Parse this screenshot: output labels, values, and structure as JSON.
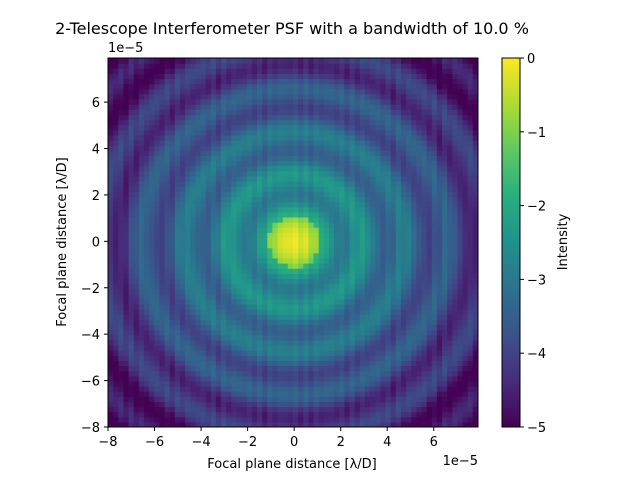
{
  "chart_data": {
    "type": "heatmap",
    "title": "2-Telescope Interferometer PSF  with a bandwidth of 10.0 %",
    "xlabel": "Focal plane distance [λ/D]",
    "ylabel": "Focal plane distance [λ/D]",
    "x_offset_text": "1e−5",
    "y_offset_text": "1e−5",
    "xlim": [
      -8,
      7.9
    ],
    "ylim": [
      -8,
      7.9
    ],
    "x_ticks": [
      -8,
      -6,
      -4,
      -2,
      0,
      2,
      4,
      6
    ],
    "y_ticks": [
      -8,
      -6,
      -4,
      -2,
      0,
      2,
      4,
      6
    ],
    "x_tick_labels": [
      "−8",
      "−6",
      "−4",
      "−2",
      "0",
      "2",
      "4",
      "6"
    ],
    "y_tick_labels": [
      "−8",
      "−6",
      "−4",
      "−2",
      "0",
      "2",
      "4",
      "6"
    ],
    "colorbar": {
      "label": "Intensity",
      "colormap": "viridis",
      "range": [
        -5,
        0
      ],
      "ticks": [
        0,
        -1,
        -2,
        -3,
        -4,
        -5
      ],
      "tick_labels": [
        "0",
        "−1",
        "−2",
        "−3",
        "−4",
        "−5"
      ]
    },
    "psf": {
      "description_values": "log10 normalized intensity; central peak 0, ring pattern decaying to -5",
      "core_radius": 1.1,
      "ring_spacing": 1.85,
      "fringe_period": 0.5,
      "peak": 0,
      "floor": -5
    }
  }
}
